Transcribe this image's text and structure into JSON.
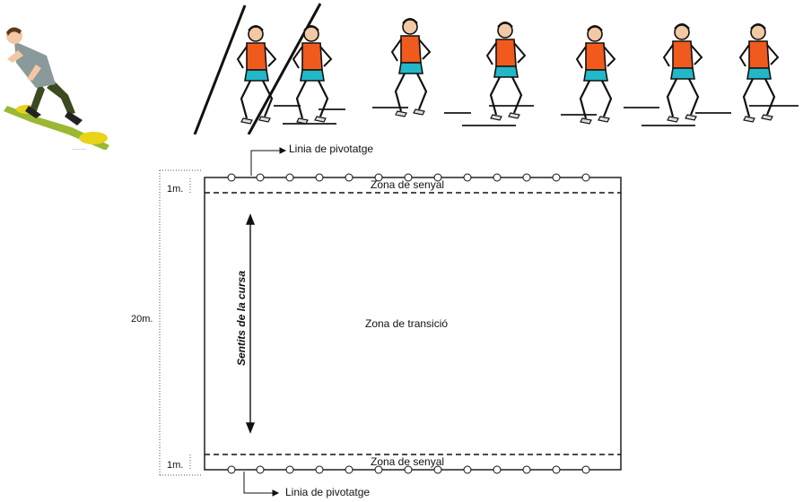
{
  "labels": {
    "pivot_top": "Linia de pivotatge",
    "pivot_bottom": "Linia de pivotatge",
    "signal_top": "Zona de senyal",
    "signal_bottom": "Zona de senyal",
    "transition": "Zona de transició",
    "direction": "Sentits de la cursa",
    "dim_top": "1m.",
    "dim_total": "20m.",
    "dim_bottom": "1m."
  },
  "colors": {
    "shirt": "#f05a1c",
    "shorts": "#22b8c8",
    "skin": "#f3c8a4",
    "line": "#111111"
  },
  "icons": {
    "left_illustration": "sprinter-start-illustration",
    "top_illustration": "relay-runners-sequence"
  }
}
